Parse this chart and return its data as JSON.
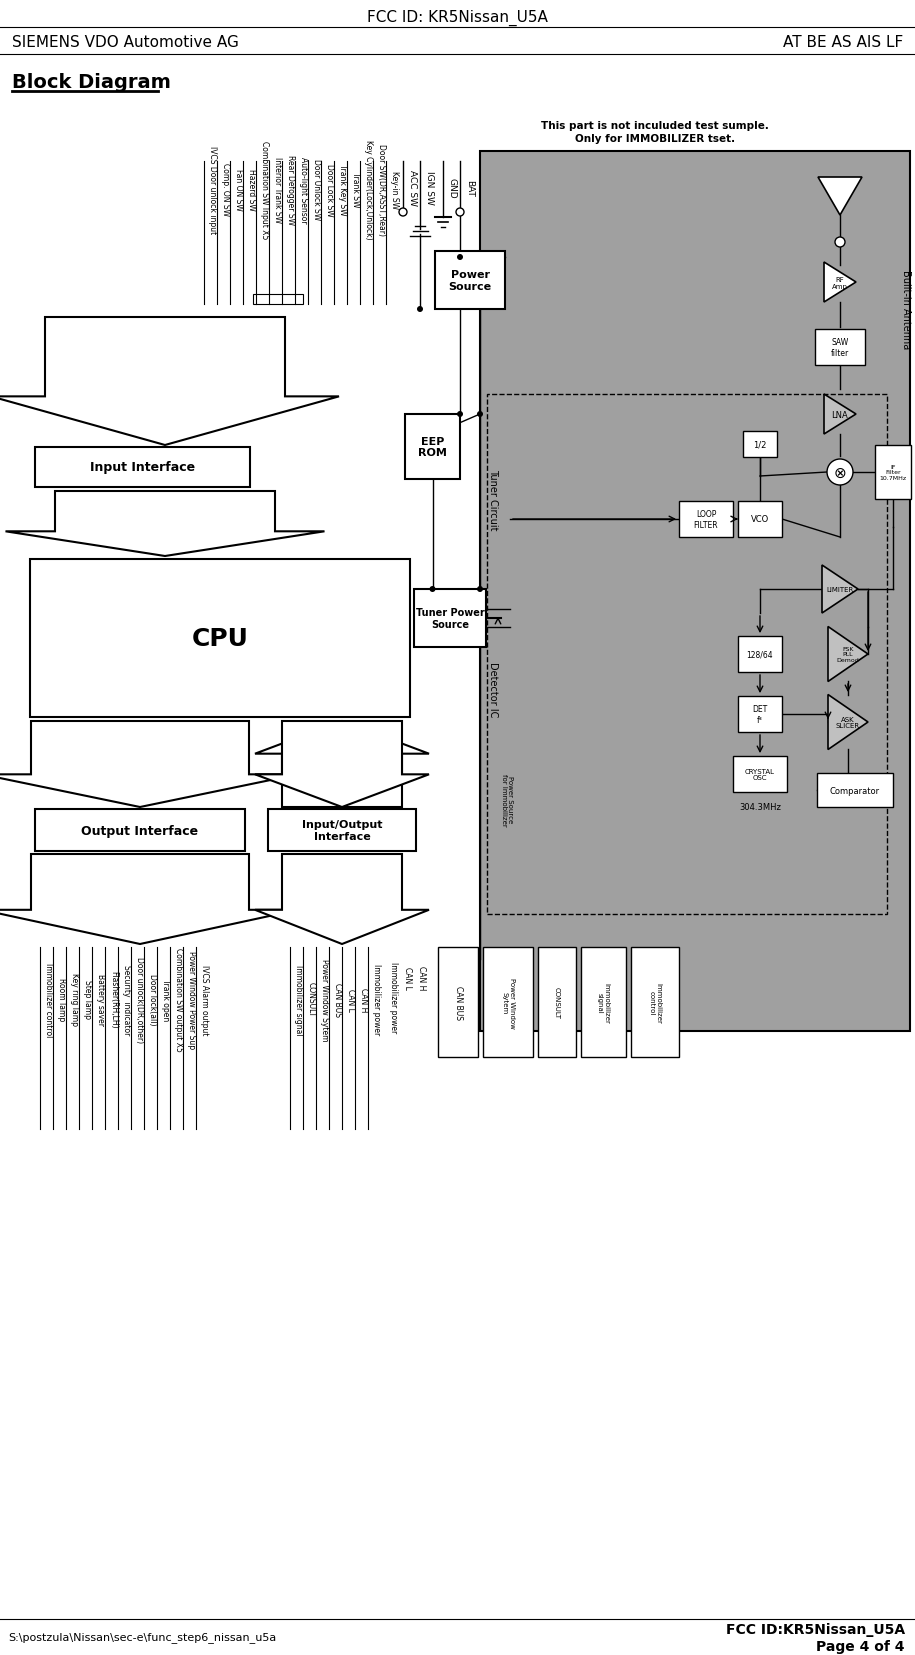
{
  "title_top": "FCC ID: KR5Nissan_U5A",
  "company_left": "SIEMENS VDO Automotive AG",
  "company_right": "AT BE AS AIS LF",
  "section_title": "Block Diagram",
  "footer_left": "S:\\postzula\\Nissan\\sec-e\\func_step6_nissan_u5a",
  "footer_right_line1": "FCC ID:KR5Nissan_U5A",
  "footer_right_line2": "Page 4 of 4",
  "note_line1": "This part is not inculuded test sumple.",
  "note_line2": "Only for IMMOBILIZER tset.",
  "bg_color": "#ffffff",
  "gray_bg": "#a0a0a0",
  "input_labels": [
    "Key-in SW",
    "Door SW(DR,ASST,Rear)",
    "Key Cylinder(Lock,Unlock)",
    "Trank SW",
    "Trank Key SW",
    "Door Lock SW",
    "Door Unlock SW",
    "Auto-light Sensor",
    "Rear Defogger SW",
    "Interior Trank SW",
    "Combination SW Input X5",
    "Hazerd SW",
    "Fan ON SW",
    "Comp. ON SW",
    "IVCS Door unlock input"
  ],
  "output_labels_left": [
    "Immobilizer control",
    "Room lamp",
    "Key ring lamp",
    "Step lamp",
    "Battery saver",
    "Flasher(RH,LH)",
    "Security  indicator",
    "Door unlock(DR,other)",
    "Door lock(all)",
    "Trank open",
    "Combination SW output X5",
    "Power Window Power Sup",
    "IVCS Alarm output"
  ],
  "output_labels_right": [
    "Immobilizer signal",
    "CONSULT",
    "Power Window Sytem",
    "CAN BUS",
    "CAN L",
    "CAN H",
    "Immobilizer power"
  ]
}
